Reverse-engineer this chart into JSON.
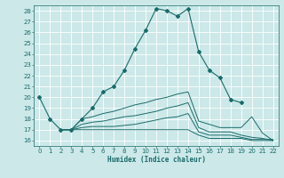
{
  "xlabel": "Humidex (Indice chaleur)",
  "xlim": [
    -0.5,
    22.5
  ],
  "ylim": [
    15.5,
    28.5
  ],
  "yticks": [
    16,
    17,
    18,
    19,
    20,
    21,
    22,
    23,
    24,
    25,
    26,
    27,
    28
  ],
  "xticks": [
    0,
    1,
    2,
    3,
    4,
    5,
    6,
    7,
    8,
    9,
    10,
    11,
    12,
    13,
    14,
    15,
    16,
    17,
    18,
    19,
    20,
    21,
    22
  ],
  "bg_color": "#cce8e8",
  "grid_color": "#ffffff",
  "line_color": "#1a6b6b",
  "lines": [
    {
      "x": [
        0,
        1,
        2,
        3,
        4,
        5,
        6,
        7,
        8,
        9,
        10,
        11,
        12,
        13,
        14,
        15,
        16,
        17,
        18,
        19
      ],
      "y": [
        20,
        18,
        17,
        17,
        18,
        19,
        20.5,
        21,
        22.5,
        24.5,
        26.2,
        28.2,
        28.0,
        27.5,
        28.2,
        24.2,
        22.5,
        21.8,
        19.8,
        19.5
      ],
      "marker": true
    },
    {
      "x": [
        2,
        3,
        4,
        5,
        6,
        7,
        8,
        9,
        10,
        11,
        12,
        13,
        14,
        15,
        16,
        17,
        18,
        19,
        20,
        21,
        22
      ],
      "y": [
        17,
        17,
        17,
        17,
        17,
        17,
        17,
        17,
        17,
        17,
        17,
        17,
        17,
        16.5,
        16.2,
        16.2,
        16.2,
        16.2,
        16.0,
        16.0,
        16.0
      ],
      "marker": false
    },
    {
      "x": [
        2,
        3,
        4,
        5,
        6,
        7,
        8,
        9,
        10,
        11,
        12,
        13,
        14,
        15,
        16,
        17,
        18,
        19,
        20,
        21,
        22
      ],
      "y": [
        17,
        17,
        17.2,
        17.3,
        17.3,
        17.3,
        17.4,
        17.5,
        17.7,
        17.9,
        18.1,
        18.2,
        18.5,
        16.8,
        16.5,
        16.5,
        16.5,
        16.3,
        16.1,
        16.1,
        16.1
      ],
      "marker": false
    },
    {
      "x": [
        2,
        3,
        4,
        5,
        6,
        7,
        8,
        9,
        10,
        11,
        12,
        13,
        14,
        15,
        16,
        17,
        18,
        19,
        20,
        21,
        22
      ],
      "y": [
        17,
        17,
        17.5,
        17.7,
        17.8,
        18.0,
        18.2,
        18.3,
        18.5,
        18.7,
        19.0,
        19.2,
        19.5,
        17.2,
        16.8,
        16.8,
        16.8,
        16.5,
        16.3,
        16.2,
        16.0
      ],
      "marker": false
    },
    {
      "x": [
        2,
        3,
        4,
        5,
        6,
        7,
        8,
        9,
        10,
        11,
        12,
        13,
        14,
        15,
        16,
        17,
        18,
        19,
        20,
        21,
        22
      ],
      "y": [
        17,
        17,
        18,
        18.2,
        18.5,
        18.7,
        19.0,
        19.3,
        19.5,
        19.8,
        20.0,
        20.3,
        20.5,
        17.8,
        17.5,
        17.2,
        17.2,
        17.2,
        18.2,
        16.7,
        16.0
      ],
      "marker": false
    }
  ]
}
